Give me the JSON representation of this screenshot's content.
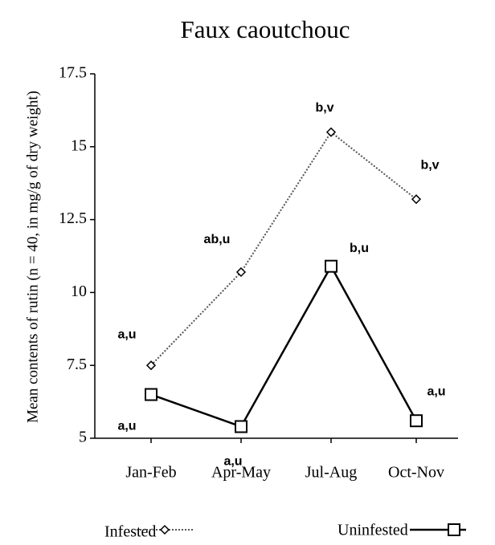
{
  "chart_data": {
    "type": "line",
    "title": "Faux caoutchouc",
    "y_label": "Mean contents of rutin (n = 40, in mg/g of dry weight)",
    "categories": [
      "Jan-Feb",
      "Apr-May",
      "Jul-Aug",
      "Oct-Nov"
    ],
    "series": [
      {
        "name": "Infested",
        "color": "#555555",
        "values": [
          7.5,
          10.7,
          15.5,
          13.2
        ],
        "point_labels": [
          "a,u",
          "ab,u",
          "b,v",
          "b,v"
        ]
      },
      {
        "name": "Uninfested",
        "color": "#000000",
        "values": [
          6.5,
          5.4,
          10.9,
          5.6
        ],
        "point_labels": [
          "a,u",
          "a,u",
          "b,u",
          "a,u"
        ]
      }
    ],
    "ylim": [
      5,
      17.5
    ],
    "yticks": [
      5,
      7.5,
      10,
      12.5,
      15,
      17.5
    ]
  }
}
